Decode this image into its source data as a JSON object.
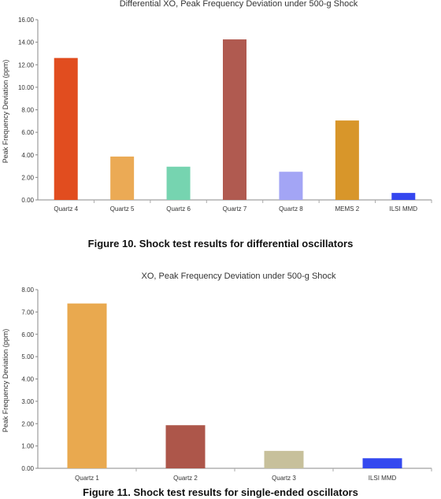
{
  "chart_data": [
    {
      "type": "bar",
      "title": "Differential XO, Peak Frequency Deviation under 500-g Shock",
      "ylabel": "Peak Frequency Deviation (ppm)",
      "xlabel": "",
      "categories": [
        "Quartz 4",
        "Quartz 5",
        "Quartz 6",
        "Quartz 7",
        "Quartz 8",
        "MEMS 2",
        "ILSI MMD"
      ],
      "values": [
        12.6,
        3.85,
        2.95,
        14.25,
        2.5,
        7.05,
        0.62
      ],
      "colors": [
        "#e14d1f",
        "#ebaa55",
        "#76d4b0",
        "#b05a50",
        "#a3a5f5",
        "#d8962a",
        "#3446ef"
      ],
      "ylim": [
        0,
        16
      ],
      "yticks": [
        "0.00",
        "2.00",
        "4.00",
        "6.00",
        "8.00",
        "10.00",
        "12.00",
        "14.00",
        "16.00"
      ],
      "grid": false,
      "caption": "Figure 10. Shock test results for differential oscillators"
    },
    {
      "type": "bar",
      "title": "XO, Peak Frequency Deviation under 500-g Shock",
      "ylabel": "Peak Frequency Deviation (ppm)",
      "xlabel": "",
      "categories": [
        "Quartz 1",
        "Quartz 2",
        "Quartz 3",
        "ILSI MMD"
      ],
      "values": [
        7.38,
        1.93,
        0.78,
        0.45
      ],
      "colors": [
        "#e9a94f",
        "#ad564a",
        "#c7c09b",
        "#3449ef"
      ],
      "ylim": [
        0,
        8
      ],
      "yticks": [
        "0.00",
        "1.00",
        "2.00",
        "3.00",
        "4.00",
        "5.00",
        "6.00",
        "7.00",
        "8.00"
      ],
      "grid": false,
      "caption": "Figure 11. Shock test results for single-ended oscillators"
    }
  ]
}
